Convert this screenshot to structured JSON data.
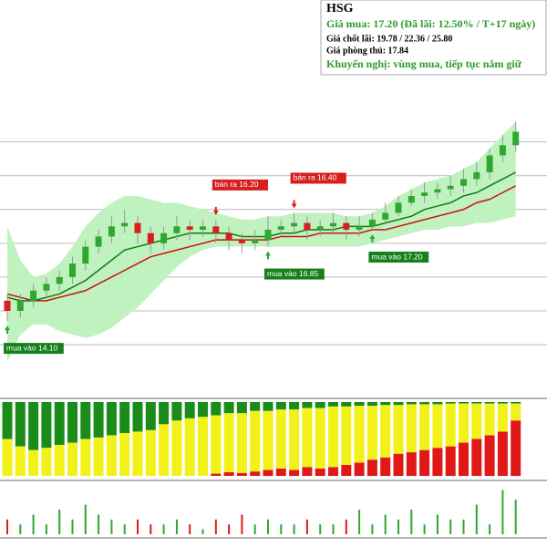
{
  "info": {
    "ticker": "HSG",
    "buy": "Giá mua: 17.20 (Đã lãi: 12.50% / T+17 ngày)",
    "take_profit": "Giá chốt lãi: 19.78 / 22.36 / 25.80",
    "stop": "Giá phòng thủ: 17.84",
    "advice": "Khuyến nghị: vùng mua, tiếp tục nắm giữ"
  },
  "chart_data": [
    {
      "type": "candlestick",
      "ylim": [
        11.6,
        20.5
      ],
      "yticks": [
        13,
        14,
        15,
        16,
        17,
        18,
        19
      ],
      "grid": true,
      "up_color": "#2fa82f",
      "down_color": "#d81e1e",
      "open": [
        14.3,
        14.0,
        14.3,
        14.6,
        14.8,
        15.0,
        15.4,
        15.9,
        16.2,
        16.5,
        16.6,
        16.3,
        16.0,
        16.3,
        16.5,
        16.4,
        16.5,
        16.3,
        16.1,
        16.0,
        16.1,
        16.4,
        16.5,
        16.6,
        16.4,
        16.5,
        16.6,
        16.4,
        16.5,
        16.7,
        16.9,
        17.2,
        17.4,
        17.5,
        17.6,
        17.7,
        17.9,
        18.1,
        18.6,
        18.9
      ],
      "high": [
        14.5,
        14.5,
        14.8,
        15.0,
        15.2,
        15.6,
        16.1,
        16.4,
        16.8,
        17.0,
        16.8,
        16.5,
        16.5,
        16.8,
        16.7,
        16.7,
        16.7,
        16.5,
        16.3,
        16.4,
        16.8,
        16.7,
        16.9,
        16.8,
        16.7,
        16.9,
        16.8,
        16.8,
        16.9,
        17.2,
        17.4,
        17.6,
        17.8,
        17.8,
        18.0,
        18.2,
        18.4,
        18.8,
        19.2,
        19.6
      ],
      "low": [
        13.7,
        13.8,
        14.1,
        14.4,
        14.6,
        14.8,
        15.2,
        15.7,
        16.0,
        16.3,
        16.0,
        15.7,
        15.8,
        16.1,
        16.1,
        16.2,
        16.0,
        15.8,
        15.7,
        15.8,
        15.9,
        16.2,
        16.3,
        16.1,
        16.2,
        16.3,
        16.1,
        16.2,
        16.4,
        16.6,
        16.8,
        17.1,
        17.2,
        17.3,
        17.4,
        17.5,
        17.7,
        17.9,
        18.4,
        18.7
      ],
      "close": [
        14.0,
        14.3,
        14.6,
        14.8,
        15.0,
        15.4,
        15.9,
        16.2,
        16.5,
        16.6,
        16.3,
        16.0,
        16.3,
        16.5,
        16.4,
        16.5,
        16.3,
        16.1,
        16.0,
        16.1,
        16.4,
        16.5,
        16.6,
        16.4,
        16.5,
        16.6,
        16.4,
        16.5,
        16.7,
        16.9,
        17.2,
        17.4,
        17.5,
        17.6,
        17.7,
        17.9,
        18.1,
        18.6,
        18.9,
        19.3
      ],
      "ma_fast": {
        "color": "#127a12",
        "values": [
          14.4,
          14.3,
          14.3,
          14.4,
          14.5,
          14.7,
          14.9,
          15.2,
          15.5,
          15.8,
          15.9,
          16.0,
          16.1,
          16.2,
          16.3,
          16.3,
          16.3,
          16.3,
          16.2,
          16.2,
          16.2,
          16.3,
          16.3,
          16.4,
          16.4,
          16.4,
          16.5,
          16.5,
          16.5,
          16.6,
          16.7,
          16.8,
          17.0,
          17.1,
          17.2,
          17.4,
          17.5,
          17.7,
          17.9,
          18.1
        ]
      },
      "ma_slow": {
        "color": "#cc1111",
        "values": [
          14.5,
          14.4,
          14.3,
          14.3,
          14.4,
          14.5,
          14.6,
          14.8,
          15.0,
          15.2,
          15.4,
          15.6,
          15.7,
          15.8,
          15.9,
          16.0,
          16.1,
          16.1,
          16.1,
          16.1,
          16.1,
          16.2,
          16.2,
          16.2,
          16.3,
          16.3,
          16.3,
          16.3,
          16.4,
          16.4,
          16.5,
          16.6,
          16.7,
          16.8,
          16.9,
          17.0,
          17.2,
          17.3,
          17.5,
          17.7
        ]
      },
      "band": {
        "color": "#bff2bf",
        "upper": [
          16.5,
          15.5,
          15.0,
          15.1,
          15.4,
          15.9,
          16.5,
          16.9,
          17.2,
          17.4,
          17.4,
          17.3,
          17.2,
          17.2,
          17.1,
          17.0,
          16.9,
          16.8,
          16.7,
          16.7,
          16.8,
          16.8,
          16.9,
          16.9,
          16.9,
          16.9,
          16.8,
          16.8,
          16.9,
          17.1,
          17.4,
          17.6,
          17.8,
          17.9,
          18.0,
          18.2,
          18.4,
          18.8,
          19.2,
          19.6
        ],
        "lower": [
          12.5,
          13.3,
          13.6,
          13.6,
          13.4,
          13.3,
          13.2,
          13.3,
          13.5,
          13.8,
          14.1,
          14.5,
          14.9,
          15.3,
          15.6,
          15.8,
          15.9,
          15.9,
          15.9,
          15.9,
          15.9,
          15.9,
          15.9,
          15.9,
          15.9,
          15.9,
          15.9,
          15.9,
          16.0,
          16.1,
          16.2,
          16.3,
          16.4,
          16.4,
          16.5,
          16.5,
          16.6,
          16.6,
          16.7,
          16.8
        ]
      },
      "annotations": [
        {
          "text": "mua vào 14.10",
          "candle": 0,
          "side": "buy"
        },
        {
          "text": "bán ra 16.20",
          "candle": 16,
          "side": "sell"
        },
        {
          "text": "mua vào 16.85",
          "candle": 20,
          "side": "buy"
        },
        {
          "text": "bán ra 16.40",
          "candle": 22,
          "side": "sell"
        },
        {
          "text": "mua vào 17.20",
          "candle": 28,
          "side": "buy"
        }
      ]
    },
    {
      "type": "stacked-bar",
      "ylim": [
        0,
        100
      ],
      "series": [
        {
          "color": "#e01818",
          "values": [
            0,
            0,
            0,
            0,
            0,
            0,
            0,
            0,
            0,
            0,
            0,
            0,
            0,
            0,
            0,
            0,
            3,
            5,
            4,
            6,
            8,
            10,
            8,
            12,
            10,
            12,
            15,
            18,
            22,
            25,
            30,
            32,
            35,
            38,
            40,
            45,
            50,
            55,
            60,
            75
          ]
        },
        {
          "color": "#f2f21a",
          "values": [
            50,
            40,
            35,
            38,
            42,
            45,
            50,
            52,
            55,
            58,
            60,
            62,
            70,
            75,
            78,
            80,
            79,
            80,
            81,
            82,
            80,
            80,
            82,
            80,
            82,
            82,
            79,
            77,
            73,
            71,
            66,
            65,
            62,
            59,
            58,
            53,
            48,
            43,
            38,
            23
          ]
        },
        {
          "color": "#1a8c1a",
          "values": [
            50,
            60,
            65,
            62,
            58,
            55,
            50,
            48,
            45,
            42,
            40,
            38,
            30,
            25,
            22,
            20,
            18,
            15,
            15,
            12,
            12,
            10,
            10,
            8,
            8,
            6,
            6,
            5,
            5,
            4,
            4,
            3,
            3,
            3,
            2,
            2,
            2,
            2,
            2,
            2
          ]
        }
      ]
    },
    {
      "type": "volume",
      "ylim": [
        0,
        10
      ],
      "values": [
        3,
        2,
        4,
        2,
        5,
        3,
        6,
        4,
        3,
        2,
        3,
        2,
        2,
        3,
        2,
        1,
        3,
        2,
        4,
        2,
        3,
        2,
        2,
        3,
        2,
        2,
        3,
        5,
        2,
        4,
        3,
        5,
        2,
        4,
        3,
        3,
        6,
        2,
        9,
        7
      ]
    }
  ]
}
